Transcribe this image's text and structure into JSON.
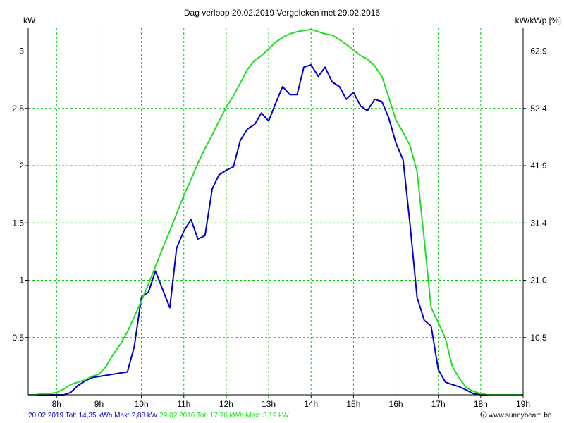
{
  "chart_data": {
    "type": "line",
    "title": "Dag  verloop 20.02.2019   Vergeleken met 29.02.2016",
    "ylabel_left": "kW",
    "ylabel_right": "kW/kWp [%]",
    "xlim": [
      7.33,
      19.0
    ],
    "ylim": [
      0,
      3.2
    ],
    "grid": true,
    "x_ticks": [
      {
        "v": 8,
        "label": "8h"
      },
      {
        "v": 9,
        "label": "9h"
      },
      {
        "v": 10,
        "label": "10h"
      },
      {
        "v": 11,
        "label": "11h"
      },
      {
        "v": 12,
        "label": "12h"
      },
      {
        "v": 13,
        "label": "13h"
      },
      {
        "v": 14,
        "label": "14h"
      },
      {
        "v": 15,
        "label": "15h"
      },
      {
        "v": 16,
        "label": "16h"
      },
      {
        "v": 17,
        "label": "17h"
      },
      {
        "v": 18,
        "label": "18h"
      },
      {
        "v": 19,
        "label": "19h"
      }
    ],
    "y_ticks": [
      {
        "v": 0.5,
        "label": "0.5"
      },
      {
        "v": 1,
        "label": "1"
      },
      {
        "v": 1.5,
        "label": "1.5"
      },
      {
        "v": 2,
        "label": "2"
      },
      {
        "v": 2.5,
        "label": "2.5"
      },
      {
        "v": 3,
        "label": "3"
      }
    ],
    "y_right_ticks": [
      {
        "v": 0.5,
        "label": "10,5"
      },
      {
        "v": 1,
        "label": "21,0"
      },
      {
        "v": 1.5,
        "label": "31,4"
      },
      {
        "v": 2,
        "label": "41,9"
      },
      {
        "v": 2.5,
        "label": "52,4"
      },
      {
        "v": 3,
        "label": "62,9"
      }
    ],
    "series": [
      {
        "name": "20.02.2019",
        "color": "#0000cc",
        "x": [
          7.33,
          7.5,
          7.67,
          7.83,
          8.0,
          8.17,
          8.33,
          8.5,
          8.67,
          8.83,
          9.0,
          9.17,
          9.33,
          9.5,
          9.67,
          9.83,
          10.0,
          10.17,
          10.33,
          10.5,
          10.67,
          10.83,
          11.0,
          11.17,
          11.33,
          11.5,
          11.67,
          11.83,
          12.0,
          12.17,
          12.33,
          12.5,
          12.67,
          12.83,
          13.0,
          13.17,
          13.33,
          13.5,
          13.67,
          13.83,
          14.0,
          14.17,
          14.33,
          14.5,
          14.67,
          14.83,
          15.0,
          15.17,
          15.33,
          15.5,
          15.67,
          15.83,
          16.0,
          16.17,
          16.33,
          16.5,
          16.67,
          16.83,
          17.0,
          17.17,
          17.33,
          17.5,
          17.67,
          17.83,
          18.0,
          18.17,
          18.33,
          18.5,
          18.67,
          18.83,
          19.0
        ],
        "values": [
          0,
          0,
          0,
          0,
          0,
          0,
          0.02,
          0.08,
          0.12,
          0.15,
          0.16,
          0.17,
          0.18,
          0.19,
          0.2,
          0.42,
          0.85,
          0.9,
          1.08,
          0.92,
          0.76,
          1.28,
          1.43,
          1.53,
          1.36,
          1.39,
          1.8,
          1.92,
          1.96,
          1.99,
          2.22,
          2.32,
          2.36,
          2.46,
          2.39,
          2.55,
          2.69,
          2.62,
          2.62,
          2.86,
          2.88,
          2.78,
          2.86,
          2.73,
          2.69,
          2.58,
          2.64,
          2.52,
          2.48,
          2.58,
          2.56,
          2.42,
          2.2,
          2.05,
          1.5,
          0.85,
          0.65,
          0.6,
          0.22,
          0.11,
          0.09,
          0.07,
          0.04,
          0.01,
          0,
          0,
          0,
          0,
          0,
          0,
          0
        ]
      },
      {
        "name": "29.02.2016",
        "color": "#22dd22",
        "x": [
          7.33,
          7.5,
          7.67,
          7.83,
          8.0,
          8.17,
          8.33,
          8.5,
          8.67,
          8.83,
          9.0,
          9.17,
          9.33,
          9.5,
          9.67,
          9.83,
          10.0,
          10.17,
          10.33,
          10.5,
          10.67,
          10.83,
          11.0,
          11.17,
          11.33,
          11.5,
          11.67,
          11.83,
          12.0,
          12.17,
          12.33,
          12.5,
          12.67,
          12.83,
          13.0,
          13.17,
          13.33,
          13.5,
          13.67,
          13.83,
          14.0,
          14.17,
          14.33,
          14.5,
          14.67,
          14.83,
          15.0,
          15.17,
          15.33,
          15.5,
          15.67,
          15.83,
          16.0,
          16.17,
          16.33,
          16.5,
          16.67,
          16.83,
          17.0,
          17.17,
          17.33,
          17.5,
          17.67,
          17.83,
          18.0,
          18.17,
          18.33,
          18.5,
          18.67,
          18.83,
          19.0
        ],
        "values": [
          0,
          0,
          0.01,
          0.01,
          0.02,
          0.05,
          0.09,
          0.11,
          0.13,
          0.16,
          0.18,
          0.25,
          0.35,
          0.44,
          0.55,
          0.68,
          0.82,
          0.97,
          1.12,
          1.28,
          1.43,
          1.58,
          1.74,
          1.88,
          2.02,
          2.15,
          2.27,
          2.39,
          2.51,
          2.61,
          2.72,
          2.84,
          2.92,
          2.96,
          3.02,
          3.08,
          3.12,
          3.15,
          3.17,
          3.18,
          3.19,
          3.17,
          3.15,
          3.14,
          3.1,
          3.06,
          3.01,
          2.96,
          2.93,
          2.87,
          2.78,
          2.6,
          2.4,
          2.29,
          2.18,
          1.95,
          1.35,
          0.76,
          0.63,
          0.49,
          0.25,
          0.14,
          0.06,
          0.03,
          0.01,
          0,
          0,
          0,
          0,
          0,
          0
        ]
      }
    ]
  },
  "footer": {
    "series1_text": "20.02.2019 Tot: 14,35 kWh Max: 2,88 kW",
    "series2_text": "29.02.2016 Tot: 17,76 kWh Max: 3,19 kW",
    "credit": "www.sunnybeam.be"
  }
}
